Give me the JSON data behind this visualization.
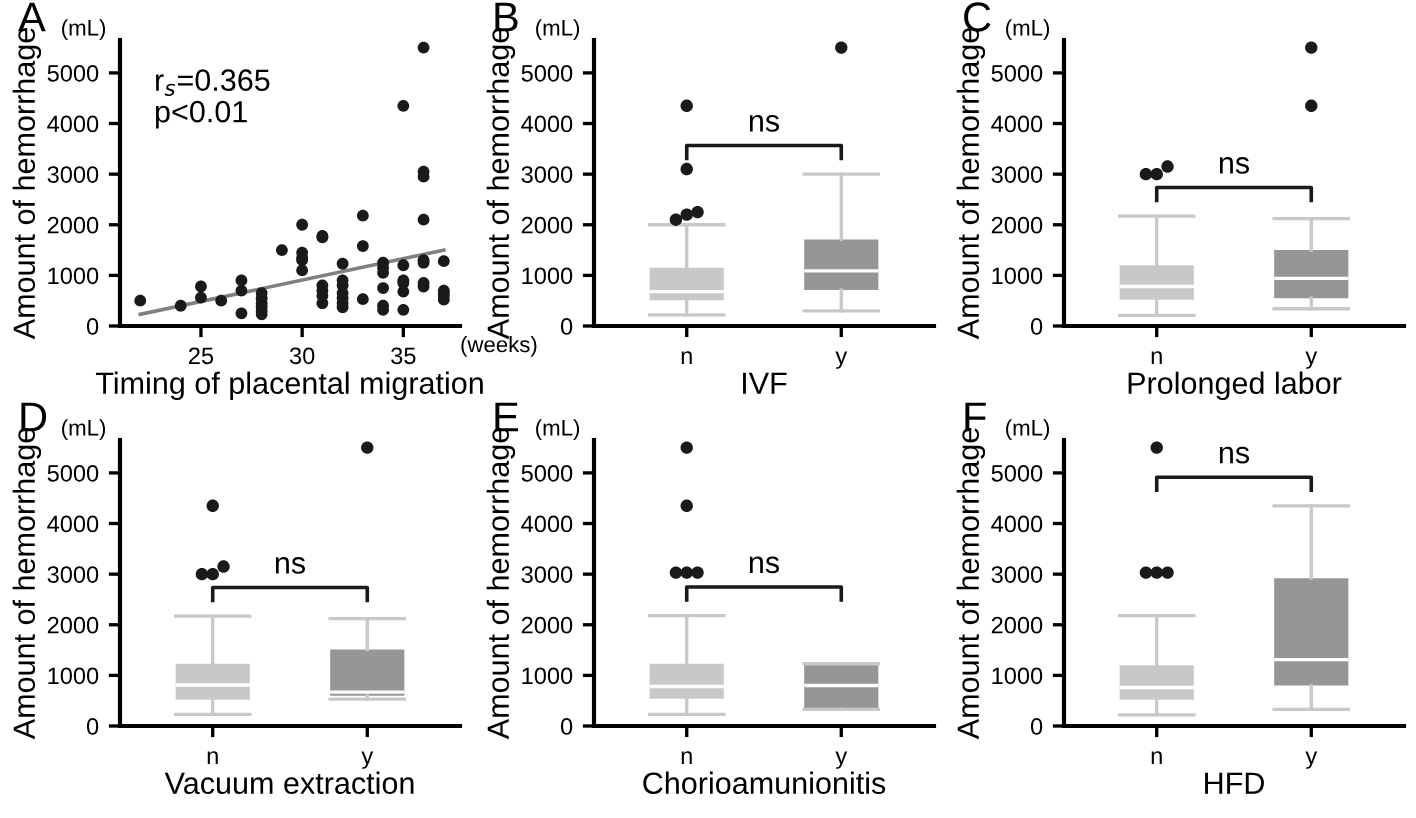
{
  "chart_data": [
    {
      "type": "scatter",
      "title": "A",
      "xlabel": "Timing of placental migration",
      "ylabel": "Amount of hemorrhage",
      "xlim": [
        21,
        37.8
      ],
      "xticks": [
        25,
        30,
        35
      ],
      "ylim": [
        0,
        5650
      ],
      "yticks": [
        0,
        1000,
        2000,
        3000,
        4000,
        5000
      ],
      "grid": false,
      "legend": false,
      "annotations": [
        "(mL)",
        "(weeks)",
        "r$_{s}$=0.365",
        "p<0.01"
      ],
      "series": [
        {
          "type": "scatter",
          "color": "#1a1a1a",
          "marker": "circle",
          "x": [
            22,
            24,
            25,
            25,
            26,
            27,
            27,
            27,
            28,
            28,
            28,
            28,
            28,
            28,
            29,
            30,
            30,
            30,
            30,
            30,
            31,
            31,
            31,
            31,
            31,
            31,
            32,
            32,
            32,
            32,
            32,
            32,
            32,
            33,
            33,
            33,
            34,
            34,
            34,
            34,
            34,
            34,
            35,
            35,
            35,
            35,
            35,
            35,
            36,
            36,
            36,
            36,
            36,
            36,
            36,
            36,
            37,
            37,
            37,
            37,
            37
          ],
          "values": [
            500,
            400,
            780,
            560,
            500,
            900,
            700,
            250,
            650,
            550,
            450,
            380,
            300,
            230,
            1500,
            2000,
            1450,
            1350,
            1300,
            1100,
            1780,
            1750,
            800,
            700,
            600,
            450,
            1230,
            900,
            800,
            650,
            550,
            450,
            370,
            2180,
            1580,
            530,
            1250,
            1150,
            1050,
            750,
            400,
            320,
            4350,
            1200,
            900,
            850,
            680,
            320,
            5500,
            3050,
            2950,
            2100,
            1300,
            1250,
            850,
            780,
            1280,
            700,
            650,
            600,
            520
          ]
        },
        {
          "type": "line",
          "color": "#808080",
          "x": [
            22,
            37
          ],
          "values": [
            230,
            1500
          ]
        }
      ]
    },
    {
      "type": "box",
      "title": "B",
      "xlabel": "IVF",
      "ylabel": "Amount of hemorrhage",
      "categories": [
        "n",
        "y"
      ],
      "colors": [
        "#c8c8c8",
        "#969696"
      ],
      "ylim": [
        0,
        5650
      ],
      "yticks": [
        0,
        1000,
        2000,
        3000,
        4000,
        5000
      ],
      "grid": false,
      "legend": false,
      "annotations": [
        "(mL)",
        "ns"
      ],
      "boxes": [
        {
          "low": 220,
          "q1": 510,
          "median": 680,
          "q3": 1150,
          "high": 2000,
          "outliers": [
            2100,
            2200,
            2250,
            3100,
            4350
          ]
        },
        {
          "low": 300,
          "q1": 710,
          "median": 1090,
          "q3": 1710,
          "high": 3000,
          "outliers": [
            5500
          ]
        }
      ]
    },
    {
      "type": "box",
      "title": "C",
      "xlabel": "Prolonged labor",
      "ylabel": "Amount of hemorrhage",
      "categories": [
        "n",
        "y"
      ],
      "colors": [
        "#c8c8c8",
        "#969696"
      ],
      "ylim": [
        0,
        5650
      ],
      "yticks": [
        0,
        1000,
        2000,
        3000,
        4000,
        5000
      ],
      "grid": false,
      "legend": false,
      "annotations": [
        "(mL)",
        "ns"
      ],
      "boxes": [
        {
          "low": 210,
          "q1": 520,
          "median": 780,
          "q3": 1200,
          "high": 2170,
          "outliers": [
            3000,
            3000,
            3150
          ]
        },
        {
          "low": 340,
          "q1": 550,
          "median": 940,
          "q3": 1500,
          "high": 2120,
          "outliers": [
            4350,
            5500
          ]
        }
      ]
    },
    {
      "type": "box",
      "title": "D",
      "xlabel": "Vacuum extraction",
      "ylabel": "Amount of hemorrhage",
      "categories": [
        "n",
        "y"
      ],
      "colors": [
        "#c8c8c8",
        "#969696"
      ],
      "ylim": [
        0,
        5650
      ],
      "yticks": [
        0,
        1000,
        2000,
        3000,
        4000,
        5000
      ],
      "grid": false,
      "legend": false,
      "annotations": [
        "(mL)",
        "ns"
      ],
      "boxes": [
        {
          "low": 230,
          "q1": 520,
          "median": 810,
          "q3": 1230,
          "high": 2170,
          "outliers": [
            3000,
            3000,
            3150,
            4350
          ]
        },
        {
          "low": 530,
          "q1": 600,
          "median": 670,
          "q3": 1510,
          "high": 2120,
          "outliers": [
            5500
          ]
        }
      ]
    },
    {
      "type": "box",
      "title": "E",
      "xlabel": "Chorioamunionitis",
      "ylabel": "Amount of hemorrhage",
      "categories": [
        "n",
        "y"
      ],
      "colors": [
        "#c8c8c8",
        "#969696"
      ],
      "ylim": [
        0,
        5650
      ],
      "yticks": [
        0,
        1000,
        2000,
        3000,
        4000,
        5000
      ],
      "grid": false,
      "legend": false,
      "annotations": [
        "(mL)",
        "ns"
      ],
      "boxes": [
        {
          "low": 230,
          "q1": 540,
          "median": 780,
          "q3": 1230,
          "high": 2180,
          "outliers": [
            3030,
            3030,
            3030,
            4350,
            5500
          ]
        },
        {
          "low": 330,
          "q1": 330,
          "median": 800,
          "q3": 1230,
          "high": 1230
        }
      ]
    },
    {
      "type": "box",
      "title": "F",
      "xlabel": "HFD",
      "ylabel": "Amount of hemorrhage",
      "categories": [
        "n",
        "y"
      ],
      "colors": [
        "#c8c8c8",
        "#969696"
      ],
      "ylim": [
        0,
        5650
      ],
      "yticks": [
        0,
        1000,
        2000,
        3000,
        4000,
        5000
      ],
      "grid": false,
      "legend": false,
      "annotations": [
        "(mL)",
        "ns"
      ],
      "boxes": [
        {
          "low": 220,
          "q1": 520,
          "median": 760,
          "q3": 1200,
          "high": 2180,
          "outliers": [
            3030,
            3030,
            3030,
            5500
          ]
        },
        {
          "low": 330,
          "q1": 800,
          "median": 1310,
          "q3": 2920,
          "high": 4350
        }
      ]
    }
  ]
}
